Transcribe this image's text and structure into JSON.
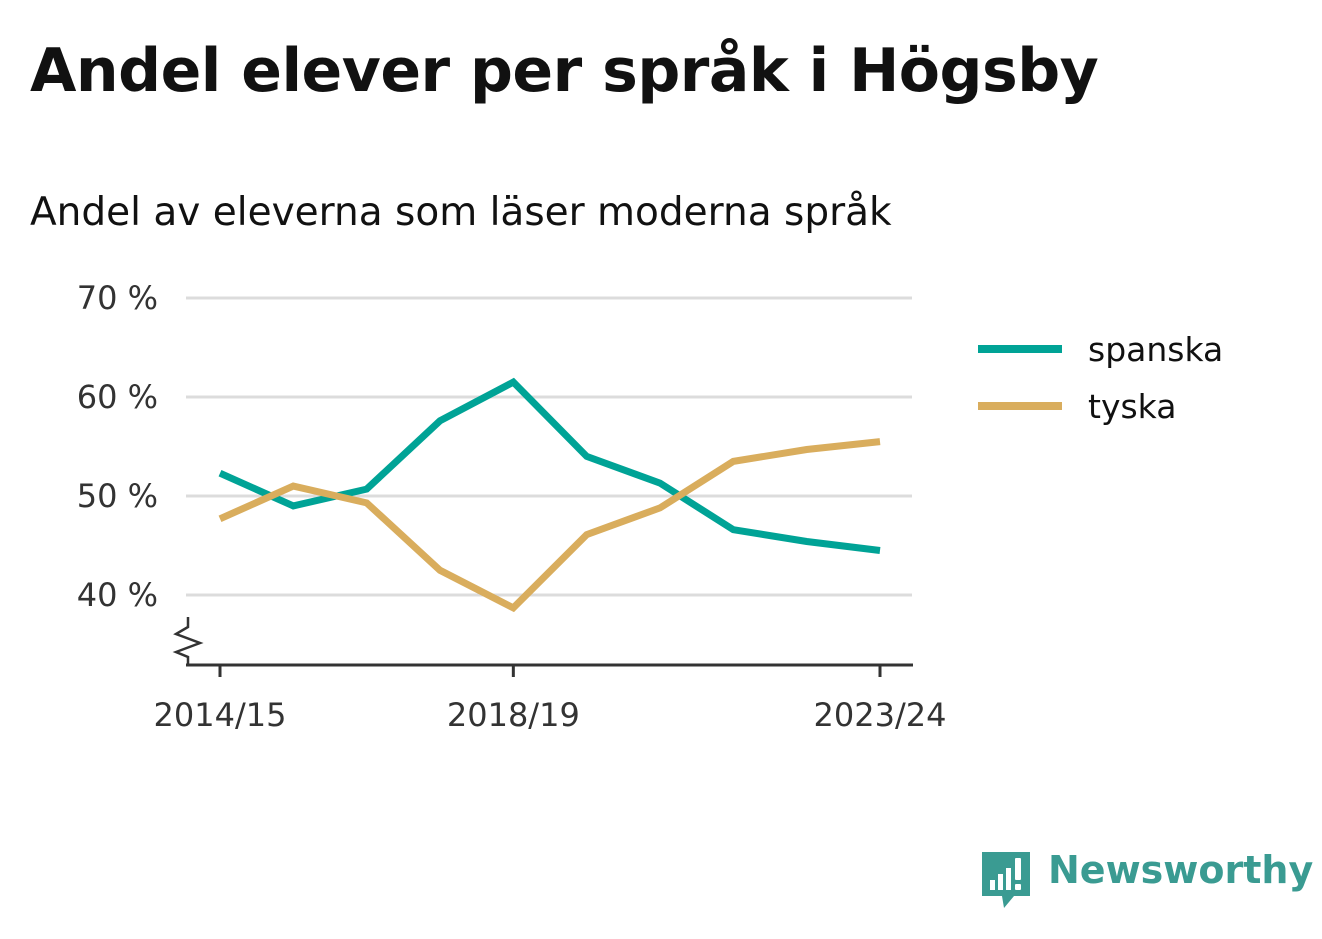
{
  "title": "Andel elever per språk i Högsby",
  "subtitle": "Andel av eleverna som läser moderna språk",
  "brand": {
    "name": "Newsworthy",
    "icon": "newsworthy-logo-icon",
    "color": "#3a9b92"
  },
  "chart_data": {
    "type": "line",
    "x": [
      "2014/15",
      "2015/16",
      "2016/17",
      "2017/18",
      "2018/19",
      "2019/20",
      "2020/21",
      "2021/22",
      "2022/23",
      "2023/24"
    ],
    "x_tick_labels": [
      "2014/15",
      "2018/19",
      "2023/24"
    ],
    "y_tick_labels": [
      "70 %",
      "60 %",
      "50 %",
      "40 %"
    ],
    "y_ticks": [
      70,
      60,
      50,
      40
    ],
    "ylim": [
      34,
      70
    ],
    "y_axis_break": true,
    "grid": true,
    "legend_position": "right",
    "series": [
      {
        "name": "spanska",
        "color": "#00a396",
        "values": [
          52.3,
          49.0,
          50.7,
          57.6,
          61.5,
          54.0,
          51.3,
          46.6,
          45.4,
          44.5
        ]
      },
      {
        "name": "tyska",
        "color": "#d9ad5d",
        "values": [
          47.7,
          51.0,
          49.3,
          42.5,
          38.7,
          46.1,
          48.8,
          53.5,
          54.7,
          55.5
        ]
      }
    ]
  }
}
